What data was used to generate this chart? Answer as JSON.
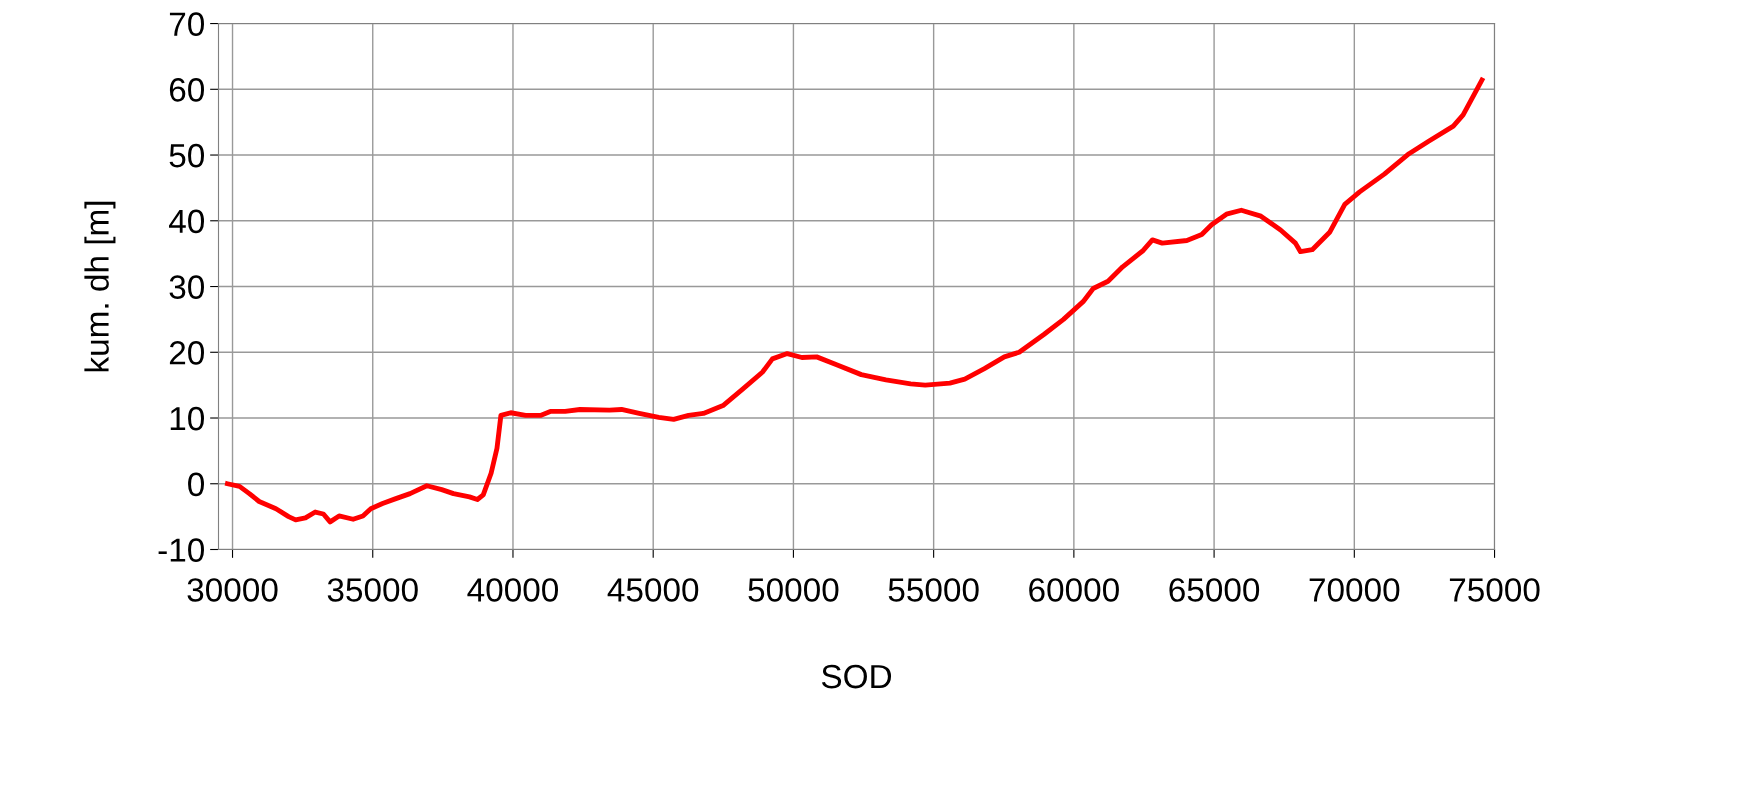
{
  "chart_data": {
    "type": "line",
    "xlabel": "SOD",
    "ylabel": "kum. dh [m]",
    "xlim": [
      29500,
      75000
    ],
    "xticks": [
      30000,
      35000,
      40000,
      45000,
      50000,
      55000,
      60000,
      65000,
      70000,
      75000
    ],
    "ylim": [
      -10,
      70
    ],
    "yticks": [
      -10,
      0,
      10,
      20,
      30,
      40,
      50,
      60,
      70
    ],
    "grid": true,
    "marker": "none",
    "line_style": "solid",
    "series": [
      {
        "color": "#ff0000",
        "x": [
          29820,
          30250,
          30600,
          30950,
          31550,
          32000,
          32250,
          32600,
          32950,
          33240,
          33480,
          33800,
          34300,
          34650,
          34930,
          35350,
          35800,
          36330,
          36930,
          37460,
          37880,
          38450,
          38730,
          38940,
          39220,
          39430,
          39570,
          39920,
          40450,
          40980,
          41330,
          41860,
          42390,
          43440,
          43870,
          44500,
          45200,
          45730,
          46260,
          46790,
          47490,
          48190,
          48900,
          49250,
          49780,
          50300,
          50830,
          51540,
          52420,
          53300,
          54180,
          54700,
          55580,
          56110,
          56810,
          57520,
          58050,
          58930,
          59630,
          60330,
          60690,
          61220,
          61740,
          62450,
          62800,
          63150,
          64030,
          64560,
          64910,
          65440,
          65970,
          66670,
          67370,
          67900,
          68080,
          68500,
          69130,
          69660,
          70190,
          71070,
          71950,
          72650,
          73530,
          73880,
          74410,
          74550
        ],
        "values": [
          0,
          -0.4,
          -1.5,
          -2.7,
          -3.8,
          -5,
          -5.5,
          -5.2,
          -4.3,
          -4.6,
          -5.8,
          -4.9,
          -5.4,
          -4.9,
          -3.8,
          -3,
          -2.3,
          -1.5,
          -0.3,
          -0.9,
          -1.5,
          -2,
          -2.4,
          -1.7,
          1.6,
          5.4,
          10.4,
          10.8,
          10.4,
          10.4,
          11,
          11,
          11.3,
          11.2,
          11.3,
          10.7,
          10.1,
          9.8,
          10.4,
          10.7,
          11.9,
          14.4,
          17,
          19,
          19.8,
          19.2,
          19.3,
          18.1,
          16.6,
          15.8,
          15.2,
          15,
          15.3,
          15.9,
          17.5,
          19.3,
          20,
          22.7,
          25,
          27.7,
          29.7,
          30.8,
          33,
          35.4,
          37.1,
          36.6,
          37,
          37.9,
          39.4,
          41,
          41.6,
          40.7,
          38.6,
          36.6,
          35.3,
          35.6,
          38.3,
          42.5,
          44.4,
          47.1,
          50.2,
          52.1,
          54.4,
          56.1,
          60.3,
          61.4
        ]
      }
    ]
  }
}
